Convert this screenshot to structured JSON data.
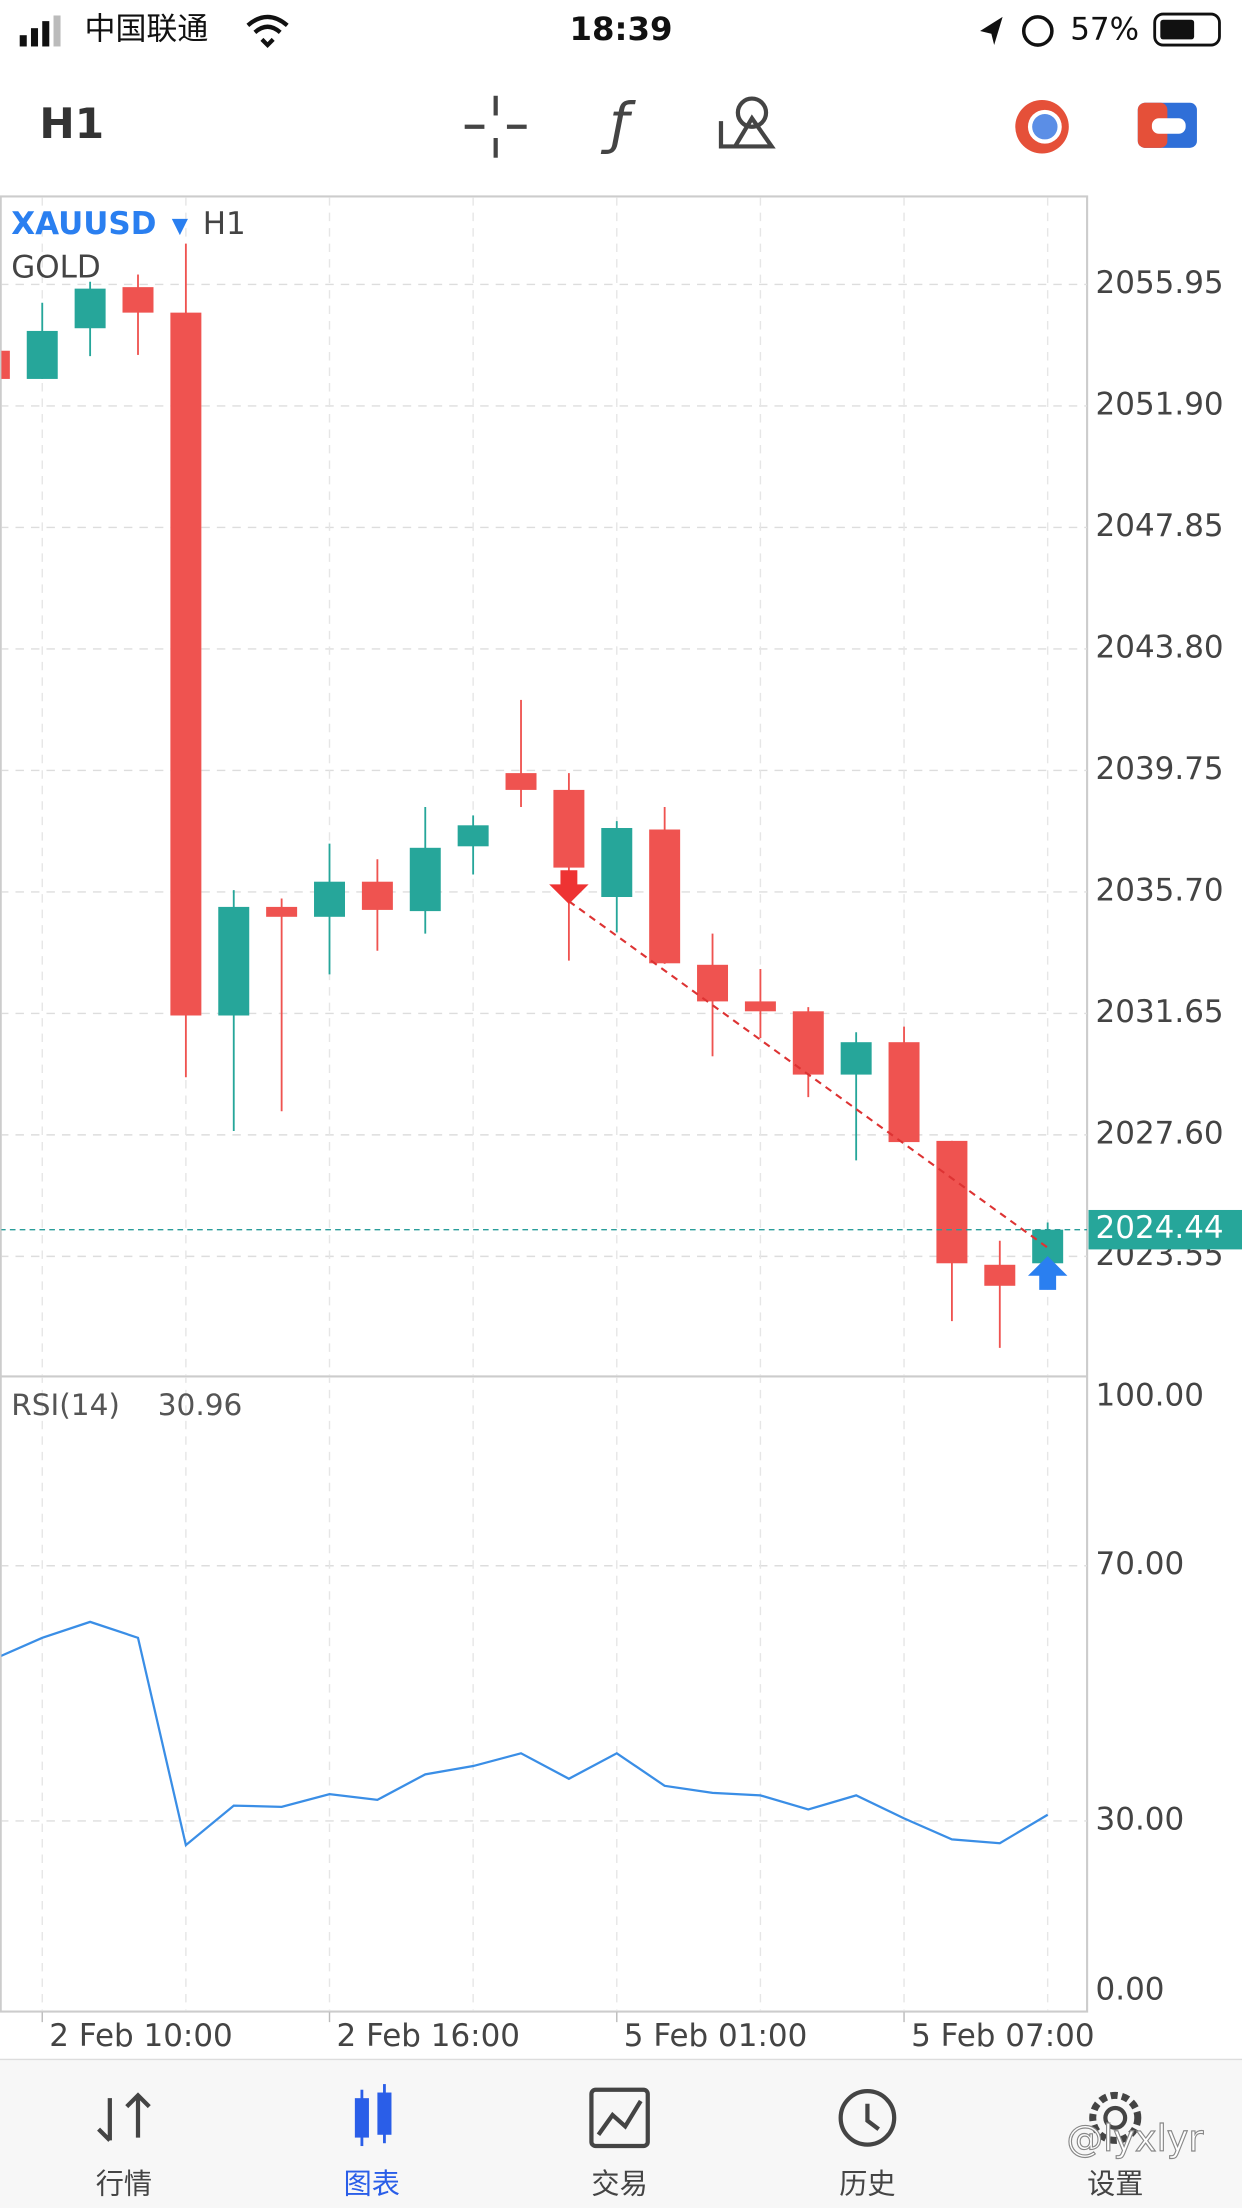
{
  "status_bar": {
    "carrier": "中国联通",
    "time": "18:39",
    "battery": "57%"
  },
  "toolbar": {
    "timeframe": "H1"
  },
  "chart_data": [
    {
      "type": "candlestick",
      "symbol": "XAUUSD",
      "timeframe": "H1",
      "description": "GOLD",
      "categories": [
        null,
        "2 Feb 10:00",
        null,
        null,
        null,
        null,
        null,
        "2 Feb 16:00",
        null,
        null,
        null,
        null,
        null,
        "5 Feb 01:00",
        null,
        null,
        null,
        null,
        null,
        "5 Feb 07:00",
        null,
        null,
        null
      ],
      "open": [
        2053.74,
        2052.8,
        2054.49,
        2055.86,
        2055.01,
        2031.58,
        2035.2,
        2034.87,
        2036.04,
        2035.06,
        2037.22,
        2039.66,
        2039.1,
        2035.53,
        2037.78,
        2033.27,
        2032.05,
        2031.72,
        2029.61,
        2030.69,
        2027.4,
        2023.27,
        2023.32
      ],
      "high": [
        2054.1,
        2055.34,
        2056.04,
        2056.28,
        2057.31,
        2035.76,
        2035.48,
        2037.31,
        2036.79,
        2038.53,
        2038.25,
        2042.1,
        2039.66,
        2038.06,
        2038.53,
        2034.31,
        2033.13,
        2031.86,
        2031.02,
        2031.21,
        2027.4,
        2024.07,
        2024.68
      ],
      "low": [
        2052.6,
        2052.8,
        2053.56,
        2053.6,
        2029.52,
        2027.73,
        2028.39,
        2032.95,
        2033.74,
        2034.31,
        2036.28,
        2038.53,
        2033.41,
        2034.35,
        2033.3,
        2030.22,
        2030.83,
        2028.86,
        2026.75,
        2027.36,
        2021.39,
        2020.5,
        2023.3
      ],
      "close": [
        2052.8,
        2054.4,
        2055.81,
        2055.01,
        2031.58,
        2035.2,
        2034.87,
        2036.04,
        2035.1,
        2037.17,
        2037.92,
        2039.1,
        2036.51,
        2037.83,
        2033.32,
        2032.05,
        2031.72,
        2029.61,
        2030.69,
        2027.36,
        2023.32,
        2022.57,
        2024.44
      ],
      "up_color": "#26a69a",
      "down_color": "#ef5350",
      "ylim": [
        2019.57,
        2058.86
      ],
      "yticks": [
        {
          "value": 2055.95,
          "label": "2055.95"
        },
        {
          "value": 2051.9,
          "label": "2051.90"
        },
        {
          "value": 2047.85,
          "label": "2047.85"
        },
        {
          "value": 2043.8,
          "label": "2043.80"
        },
        {
          "value": 2039.75,
          "label": "2039.75"
        },
        {
          "value": 2035.7,
          "label": "2035.70"
        },
        {
          "value": 2031.65,
          "label": "2031.65"
        },
        {
          "value": 2027.6,
          "label": "2027.60"
        },
        {
          "value": 2023.55,
          "label": "2023.55"
        }
      ],
      "grid": true
    },
    {
      "type": "line",
      "title": "RSI(14)",
      "color": "#3a8ee6",
      "values": [
        55.4,
        58.7,
        61.2,
        58.7,
        26.2,
        32.4,
        32.2,
        34.2,
        33.3,
        37.3,
        38.6,
        40.6,
        36.6,
        40.6,
        35.5,
        34.4,
        34.0,
        31.8,
        34.0,
        30.4,
        27.1,
        26.5,
        30.96
      ],
      "ylim": [
        0,
        100
      ],
      "yticks": [
        {
          "value": 100,
          "label": "100.00"
        },
        {
          "value": 70,
          "label": "70.00"
        },
        {
          "value": 30,
          "label": "30.00"
        },
        {
          "value": 0,
          "label": "0.00"
        }
      ],
      "grid": true
    }
  ],
  "tab_bar": {
    "tabs": [
      "行情",
      "图表",
      "交易",
      "历史",
      "设置"
    ],
    "active": 1
  },
  "watermark": "@lyxlyr"
}
